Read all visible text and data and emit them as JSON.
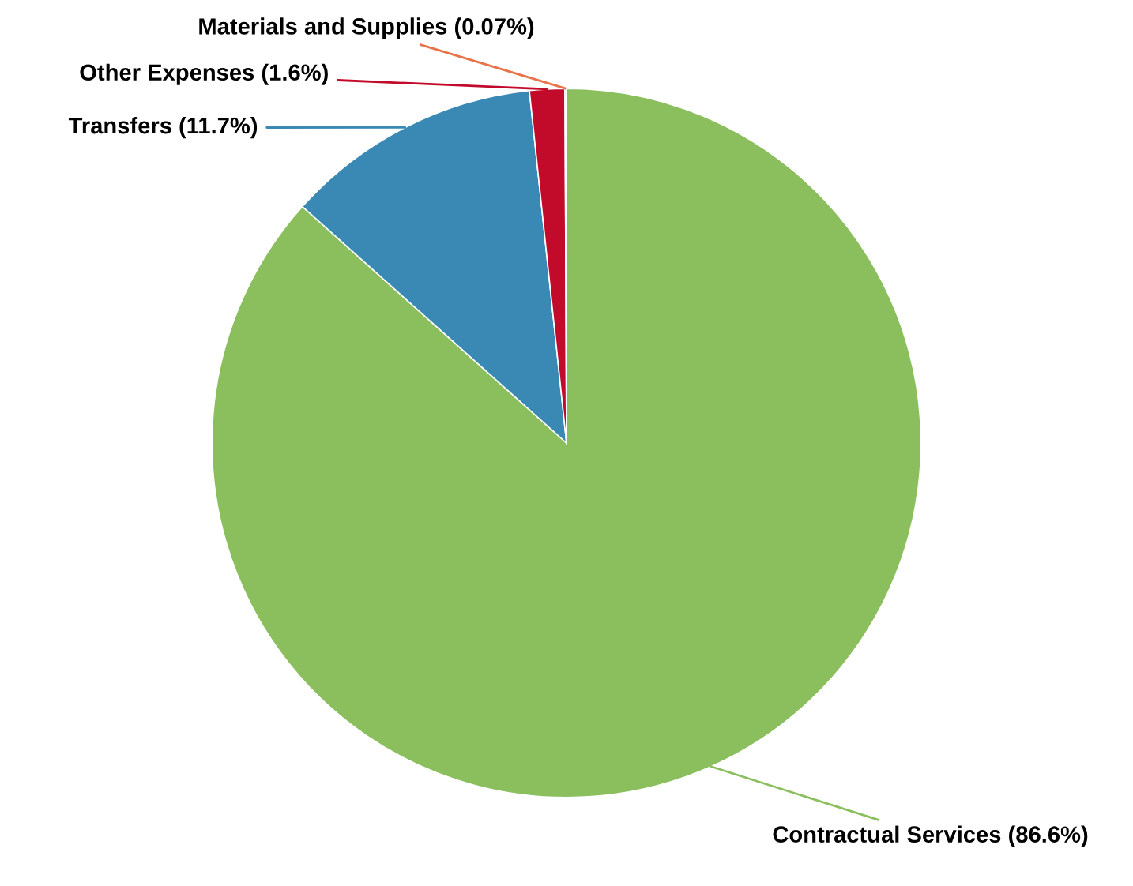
{
  "chart_data": {
    "type": "pie",
    "categories": [
      "Contractual Services",
      "Transfers",
      "Other Expenses",
      "Materials and Supplies"
    ],
    "values": [
      86.6,
      11.7,
      1.6,
      0.07
    ],
    "value_labels": [
      "(86.6%)",
      "(11.7%)",
      "(1.6%)",
      "(0.07%)"
    ],
    "colors": [
      "#8bbf5e",
      "#3a89b5",
      "#c20b2b",
      "#e8734a"
    ],
    "legend": false
  }
}
